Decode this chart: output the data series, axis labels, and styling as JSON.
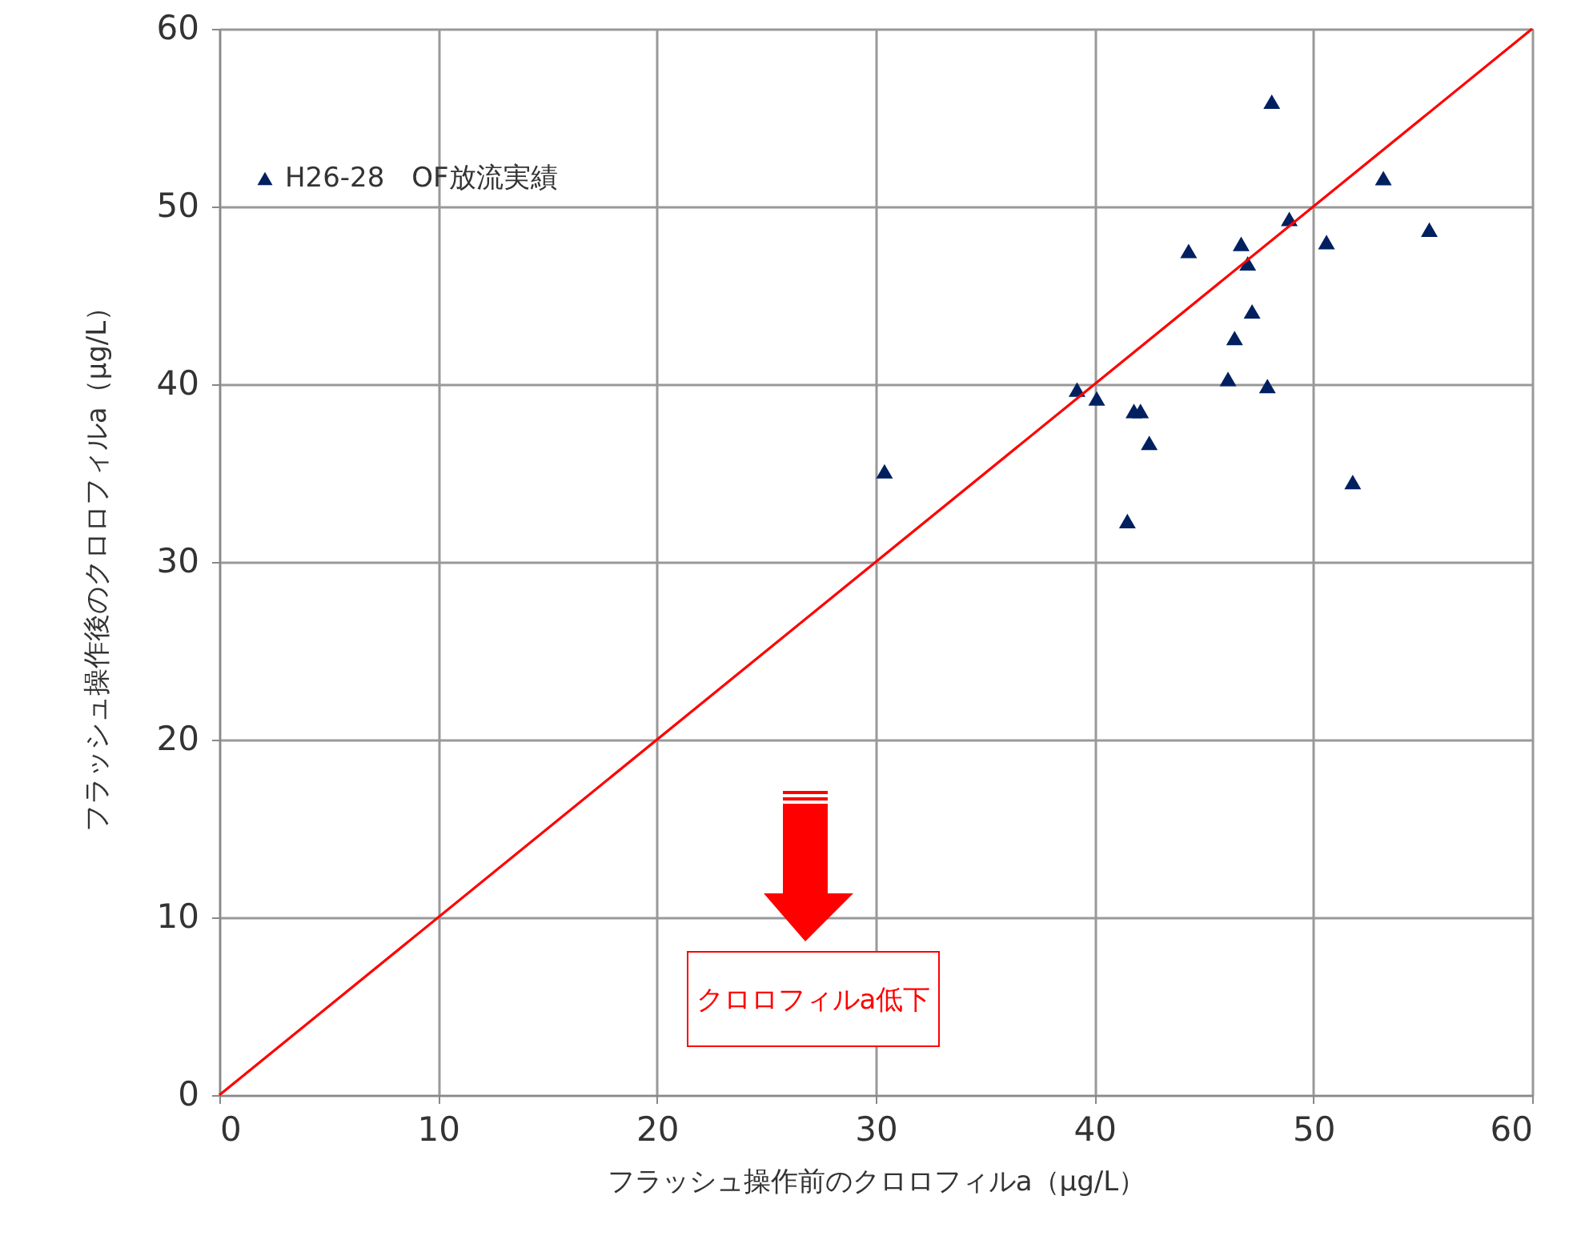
{
  "chart_data": {
    "type": "scatter",
    "xlabel": "フラッシュ操作前のクロロフィルa（μg/L）",
    "ylabel": "フラッシュ操作後のクロロフィルa（μg/L）",
    "xlim": [
      0,
      60
    ],
    "ylim": [
      0,
      60
    ],
    "xticks": [
      0,
      10,
      20,
      30,
      40,
      50,
      60
    ],
    "yticks": [
      0,
      10,
      20,
      30,
      40,
      50,
      60
    ],
    "grid": true,
    "legend": "top left",
    "annotations": [
      "クロロフィルa低下"
    ],
    "series": [
      {
        "name": "H26-28　OF放流実績",
        "color": "#002060",
        "marker": "triangle",
        "x": [
          30.4,
          39.2,
          40.1,
          41.5,
          41.8,
          42.1,
          42.5,
          44.3,
          46.1,
          46.4,
          46.7,
          47.0,
          47.2,
          47.9,
          48.1,
          48.9,
          50.6,
          51.8,
          53.2,
          55.3
        ],
        "values": [
          35.1,
          39.7,
          39.2,
          32.3,
          38.5,
          38.5,
          36.7,
          47.5,
          40.3,
          42.6,
          47.9,
          46.8,
          44.1,
          39.9,
          55.9,
          49.3,
          48.0,
          34.5,
          51.6,
          48.7
        ]
      },
      {
        "type": "line",
        "color": "#ff0000",
        "marker": "none",
        "x": [
          0,
          60
        ],
        "values": [
          0,
          60
        ]
      }
    ]
  }
}
